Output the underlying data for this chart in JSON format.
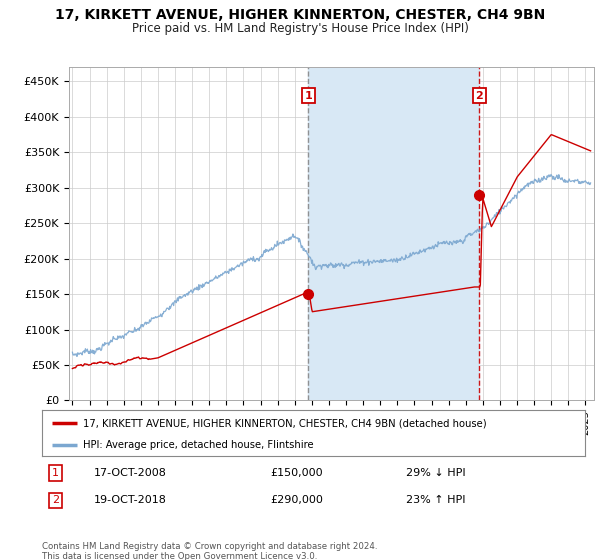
{
  "title": "17, KIRKETT AVENUE, HIGHER KINNERTON, CHESTER, CH4 9BN",
  "subtitle": "Price paid vs. HM Land Registry's House Price Index (HPI)",
  "ylabel_ticks": [
    "£0",
    "£50K",
    "£100K",
    "£150K",
    "£200K",
    "£250K",
    "£300K",
    "£350K",
    "£400K",
    "£450K"
  ],
  "ytick_values": [
    0,
    50000,
    100000,
    150000,
    200000,
    250000,
    300000,
    350000,
    400000,
    450000
  ],
  "ylim": [
    0,
    470000
  ],
  "xlim_start": 1994.8,
  "xlim_end": 2025.5,
  "purchase1_x": 2008.8,
  "purchase1_y": 150000,
  "purchase2_x": 2018.8,
  "purchase2_y": 290000,
  "bg_color": "#ffffff",
  "plot_bg": "#ffffff",
  "red_line_color": "#cc0000",
  "blue_line_color": "#7ba7d0",
  "shade_color": "#d8e8f5",
  "grid_color": "#cccccc",
  "legend1_label": "17, KIRKETT AVENUE, HIGHER KINNERTON, CHESTER, CH4 9BN (detached house)",
  "legend2_label": "HPI: Average price, detached house, Flintshire",
  "footer": "Contains HM Land Registry data © Crown copyright and database right 2024.\nThis data is licensed under the Open Government Licence v3.0."
}
